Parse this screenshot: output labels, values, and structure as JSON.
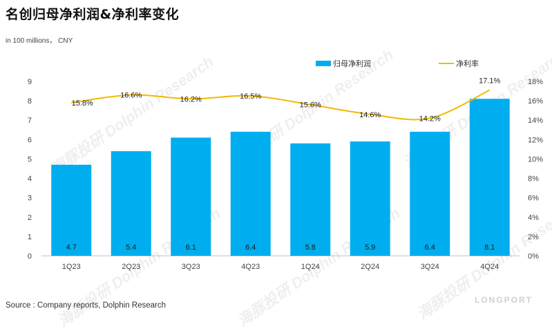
{
  "title": "名创归母净利润&净利率变化",
  "unit_note": "in 100 millions， CNY",
  "source": "Source : Company reports, Dolphin Research",
  "watermark_text": "Dolphin Research",
  "watermark_cn": "海豚投研",
  "brand": "LONGPORT",
  "colors": {
    "bar": "#00AEEF",
    "line": "#F2B800"
  },
  "chart_data": {
    "type": "bar+line",
    "categories": [
      "1Q23",
      "2Q23",
      "3Q23",
      "4Q23",
      "1Q24",
      "2Q24",
      "3Q24",
      "4Q24"
    ],
    "series": [
      {
        "name": "归母净利润",
        "type": "bar",
        "axis": "left",
        "values": [
          4.7,
          5.4,
          6.1,
          6.4,
          5.8,
          5.9,
          6.4,
          8.1
        ],
        "labels": [
          "4.7",
          "5.4",
          "6.1",
          "6.4",
          "5.8",
          "5.9",
          "6.4",
          "8.1"
        ]
      },
      {
        "name": "净利率",
        "type": "line",
        "axis": "right",
        "values": [
          15.8,
          16.6,
          16.2,
          16.5,
          15.6,
          14.6,
          14.2,
          17.1
        ],
        "labels": [
          "15.8%",
          "16.6%",
          "16.2%",
          "16.5%",
          "15.6%",
          "14.6%",
          "14.2%",
          "17.1%"
        ]
      }
    ],
    "y_left": {
      "min": 0,
      "max": 9,
      "ticks": [
        "0",
        "1",
        "2",
        "3",
        "4",
        "5",
        "6",
        "7",
        "8",
        "9"
      ]
    },
    "y_right": {
      "min": 0,
      "max": 18,
      "ticks": [
        "0%",
        "2%",
        "4%",
        "6%",
        "8%",
        "10%",
        "12%",
        "14%",
        "16%",
        "18%"
      ]
    },
    "legend_position": "top-right",
    "grid": false
  }
}
